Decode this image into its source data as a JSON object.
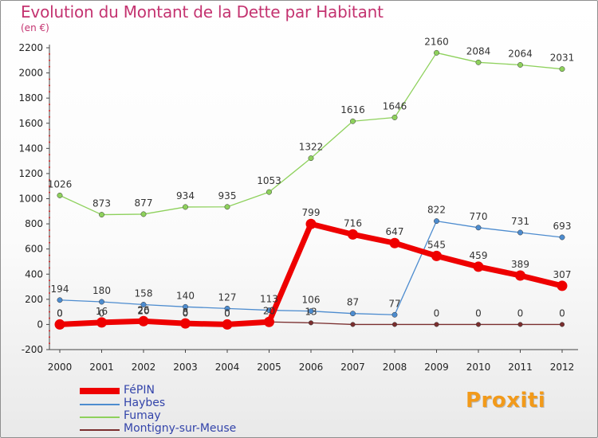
{
  "title": "Evolution du Montant de la Dette par Habitant",
  "subtitle": "(en €)",
  "logo": "Proxiti",
  "chart_data": {
    "type": "line",
    "title": "Evolution du Montant de la Dette par Habitant",
    "ylabel": "(en €)",
    "xlabel": "",
    "ylim": [
      -200,
      2200
    ],
    "yticks": [
      "-200",
      "0",
      "200",
      "400",
      "600",
      "800",
      "1000",
      "1200",
      "1400",
      "1600",
      "1800",
      "2000",
      "2200"
    ],
    "x": [
      "2000",
      "2001",
      "2002",
      "2003",
      "2004",
      "2005",
      "2006",
      "2007",
      "2008",
      "2009",
      "2010",
      "2011",
      "2012"
    ],
    "grid": false,
    "legend_position": "bottom-left",
    "series": [
      {
        "name": "Montigny-sur-Meuse",
        "color": "#7a2e2e",
        "values": [
          0,
          0,
          20,
          0,
          0,
          20,
          13,
          0,
          0,
          0,
          0,
          0,
          0
        ],
        "labels": [
          "0",
          "0",
          "20",
          "0",
          "0",
          "",
          "13",
          "",
          "",
          "0",
          "0",
          "0",
          "0"
        ]
      },
      {
        "name": "Haybes",
        "color": "#4d8ccf",
        "values": [
          194,
          180,
          158,
          140,
          127,
          113,
          106,
          87,
          77,
          822,
          770,
          731,
          693
        ],
        "labels": [
          "194",
          "180",
          "158",
          "140",
          "127",
          "113",
          "106",
          "87",
          "77",
          "822",
          "770",
          "731",
          "693"
        ]
      },
      {
        "name": "Fumay",
        "color": "#8ed15c",
        "values": [
          1026,
          873,
          877,
          934,
          935,
          1053,
          1322,
          1616,
          1646,
          2160,
          2084,
          2064,
          2031
        ],
        "labels": [
          "1026",
          "873",
          "877",
          "934",
          "935",
          "1053",
          "1322",
          "1616",
          "1646",
          "2160",
          "2084",
          "2064",
          "2031"
        ]
      },
      {
        "name": "FéPIN",
        "color": "#ee0000",
        "values": [
          0,
          16,
          26,
          8,
          0,
          20,
          799,
          716,
          647,
          545,
          459,
          389,
          307
        ],
        "labels": [
          "0",
          "16",
          "26",
          "8",
          "0",
          "20",
          "799",
          "716",
          "647",
          "545",
          "459",
          "389",
          "307"
        ]
      }
    ]
  },
  "legend": [
    {
      "label": "FéPIN",
      "color": "#ee0000"
    },
    {
      "label": "Haybes",
      "color": "#4d8ccf"
    },
    {
      "label": "Fumay",
      "color": "#8ed15c"
    },
    {
      "label": "Montigny-sur-Meuse",
      "color": "#7a2e2e"
    }
  ]
}
